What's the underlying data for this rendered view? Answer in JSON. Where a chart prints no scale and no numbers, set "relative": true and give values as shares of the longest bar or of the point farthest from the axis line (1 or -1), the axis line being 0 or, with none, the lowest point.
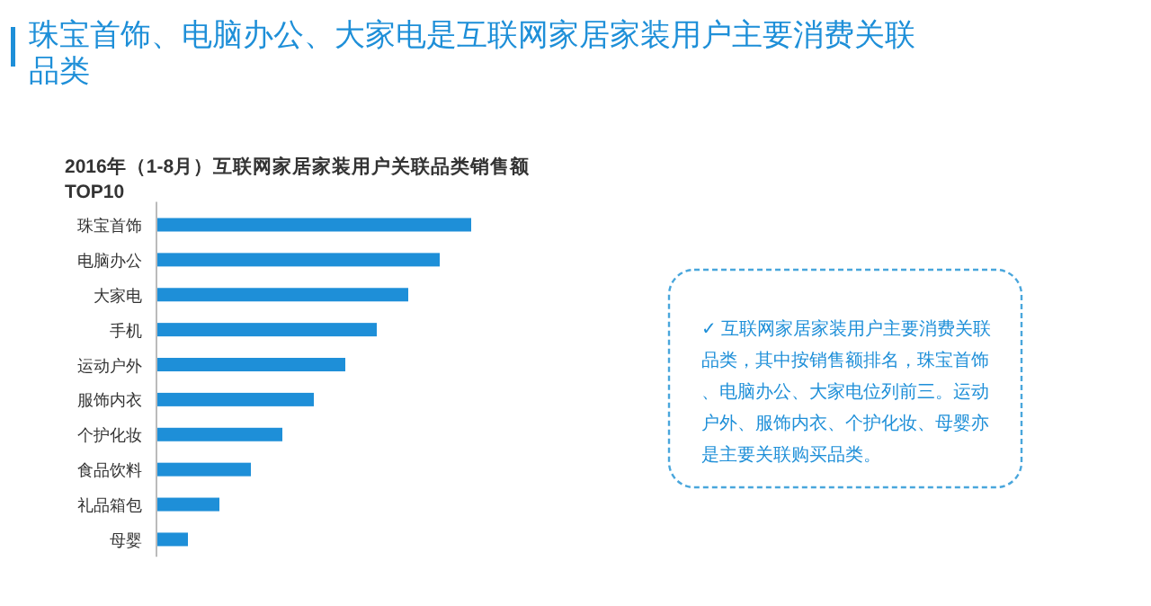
{
  "chart_data": {
    "type": "bar",
    "orientation": "horizontal",
    "relative": true,
    "title": "珠宝首饰、电脑办公、大家电是互联网家居家装用户主要消费关联品类",
    "subtitle": "2016年（1-8月）互联网家居家装用户关联品类销售额TOP10",
    "categories": [
      "珠宝首饰",
      "电脑办公",
      "大家电",
      "手机",
      "运动户外",
      "服饰内衣",
      "个护化妆",
      "食品饮料",
      "礼品箱包",
      "母婴"
    ],
    "values": [
      1,
      0.9,
      0.8,
      0.7,
      0.6,
      0.5,
      0.4,
      0.3,
      0.2,
      0.1
    ],
    "color": "#1e8fd8",
    "annotations": [
      "✓ 互联网家居家装用户主要消费关联品类，其中按销售额排名，珠宝首饰、电脑办公、大家电位列前三。运动户外、服饰内衣、个护化妆、母婴亦是主要关联购买品类。"
    ]
  }
}
